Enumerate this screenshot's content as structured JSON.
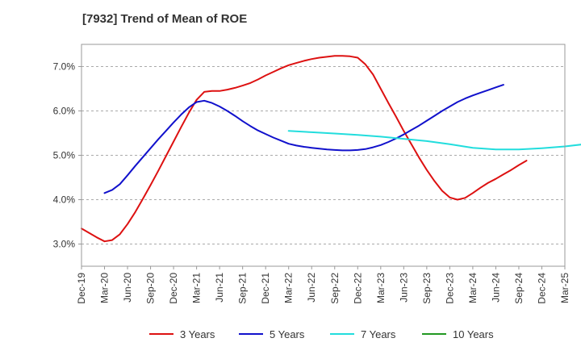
{
  "chart_data": {
    "type": "line",
    "title": "[7932]  Trend of Mean of ROE",
    "xlabel": "",
    "ylabel": "",
    "x_ticks": [
      "Dec-19",
      "Mar-20",
      "Jun-20",
      "Sep-20",
      "Dec-20",
      "Mar-21",
      "Jun-21",
      "Sep-21",
      "Dec-21",
      "Mar-22",
      "Jun-22",
      "Sep-22",
      "Dec-22",
      "Mar-23",
      "Jun-23",
      "Sep-23",
      "Dec-23",
      "Mar-24",
      "Jun-24",
      "Sep-24",
      "Dec-24",
      "Mar-25"
    ],
    "y_ticks": [
      "3.0%",
      "4.0%",
      "5.0%",
      "6.0%",
      "7.0%"
    ],
    "ylim": [
      2.5,
      7.5
    ],
    "grid": "horizontal dashed",
    "legend_position": "bottom",
    "series": [
      {
        "name": "3 Years",
        "color": "#dd1111",
        "points": [
          [
            "Dec-19",
            3.35
          ],
          [
            "Jan-20",
            3.25
          ],
          [
            "Feb-20",
            3.15
          ],
          [
            "Mar-20",
            3.06
          ],
          [
            "Apr-20",
            3.09
          ],
          [
            "May-20",
            3.22
          ],
          [
            "Jun-20",
            3.45
          ],
          [
            "Jul-20",
            3.72
          ],
          [
            "Aug-20",
            4.02
          ],
          [
            "Sep-20",
            4.33
          ],
          [
            "Oct-20",
            4.65
          ],
          [
            "Nov-20",
            4.98
          ],
          [
            "Dec-20",
            5.31
          ],
          [
            "Jan-21",
            5.64
          ],
          [
            "Feb-21",
            5.96
          ],
          [
            "Mar-21",
            6.25
          ],
          [
            "Apr-21",
            6.43
          ],
          [
            "May-21",
            6.45
          ],
          [
            "Jun-21",
            6.45
          ],
          [
            "Jul-21",
            6.48
          ],
          [
            "Aug-21",
            6.52
          ],
          [
            "Sep-21",
            6.57
          ],
          [
            "Oct-21",
            6.63
          ],
          [
            "Nov-21",
            6.71
          ],
          [
            "Dec-21",
            6.8
          ],
          [
            "Jan-22",
            6.88
          ],
          [
            "Feb-22",
            6.96
          ],
          [
            "Mar-22",
            7.03
          ],
          [
            "Apr-22",
            7.08
          ],
          [
            "May-22",
            7.13
          ],
          [
            "Jun-22",
            7.17
          ],
          [
            "Jul-22",
            7.2
          ],
          [
            "Aug-22",
            7.22
          ],
          [
            "Sep-22",
            7.24
          ],
          [
            "Oct-22",
            7.24
          ],
          [
            "Nov-22",
            7.23
          ],
          [
            "Dec-22",
            7.2
          ],
          [
            "Jan-23",
            7.05
          ],
          [
            "Feb-23",
            6.82
          ],
          [
            "Mar-23",
            6.5
          ],
          [
            "Apr-23",
            6.18
          ],
          [
            "May-23",
            5.87
          ],
          [
            "Jun-23",
            5.55
          ],
          [
            "Jul-23",
            5.25
          ],
          [
            "Aug-23",
            4.95
          ],
          [
            "Sep-23",
            4.67
          ],
          [
            "Oct-23",
            4.42
          ],
          [
            "Nov-23",
            4.2
          ],
          [
            "Dec-23",
            4.05
          ],
          [
            "Jan-24",
            4.0
          ],
          [
            "Feb-24",
            4.04
          ],
          [
            "Mar-24",
            4.15
          ],
          [
            "Apr-24",
            4.27
          ],
          [
            "May-24",
            4.38
          ],
          [
            "Jun-24",
            4.47
          ],
          [
            "Jul-24",
            4.57
          ],
          [
            "Aug-24",
            4.67
          ],
          [
            "Sep-24",
            4.78
          ],
          [
            "Oct-24",
            4.88
          ]
        ]
      },
      {
        "name": "5 Years",
        "color": "#1111cc",
        "points": [
          [
            "Mar-20",
            4.15
          ],
          [
            "Apr-20",
            4.22
          ],
          [
            "May-20",
            4.35
          ],
          [
            "Jun-20",
            4.55
          ],
          [
            "Jul-20",
            4.76
          ],
          [
            "Aug-20",
            4.96
          ],
          [
            "Sep-20",
            5.16
          ],
          [
            "Oct-20",
            5.36
          ],
          [
            "Nov-20",
            5.55
          ],
          [
            "Dec-20",
            5.74
          ],
          [
            "Jan-21",
            5.92
          ],
          [
            "Feb-21",
            6.08
          ],
          [
            "Mar-21",
            6.2
          ],
          [
            "Apr-21",
            6.23
          ],
          [
            "May-21",
            6.18
          ],
          [
            "Jun-21",
            6.1
          ],
          [
            "Jul-21",
            6.0
          ],
          [
            "Aug-21",
            5.89
          ],
          [
            "Sep-21",
            5.77
          ],
          [
            "Oct-21",
            5.66
          ],
          [
            "Nov-21",
            5.56
          ],
          [
            "Dec-21",
            5.48
          ],
          [
            "Jan-22",
            5.4
          ],
          [
            "Feb-22",
            5.33
          ],
          [
            "Mar-22",
            5.26
          ],
          [
            "Apr-22",
            5.22
          ],
          [
            "May-22",
            5.19
          ],
          [
            "Jun-22",
            5.17
          ],
          [
            "Jul-22",
            5.15
          ],
          [
            "Aug-22",
            5.13
          ],
          [
            "Sep-22",
            5.12
          ],
          [
            "Oct-22",
            5.11
          ],
          [
            "Nov-22",
            5.11
          ],
          [
            "Dec-22",
            5.12
          ],
          [
            "Jan-23",
            5.14
          ],
          [
            "Feb-23",
            5.18
          ],
          [
            "Mar-23",
            5.23
          ],
          [
            "Apr-23",
            5.3
          ],
          [
            "May-23",
            5.38
          ],
          [
            "Jun-23",
            5.47
          ],
          [
            "Jul-23",
            5.57
          ],
          [
            "Aug-23",
            5.67
          ],
          [
            "Sep-23",
            5.78
          ],
          [
            "Oct-23",
            5.89
          ],
          [
            "Nov-23",
            6.0
          ],
          [
            "Dec-23",
            6.1
          ],
          [
            "Jan-24",
            6.2
          ],
          [
            "Feb-24",
            6.28
          ],
          [
            "Mar-24",
            6.35
          ],
          [
            "Apr-24",
            6.41
          ],
          [
            "May-24",
            6.47
          ],
          [
            "Jun-24",
            6.53
          ],
          [
            "Jul-24",
            6.59
          ]
        ]
      },
      {
        "name": "7 Years",
        "color": "#22dddd",
        "points": [
          [
            "Mar-22",
            5.55
          ],
          [
            "Jun-22",
            5.52
          ],
          [
            "Sep-22",
            5.49
          ],
          [
            "Dec-22",
            5.46
          ],
          [
            "Mar-23",
            5.42
          ],
          [
            "Jun-23",
            5.37
          ],
          [
            "Sep-23",
            5.32
          ],
          [
            "Dec-23",
            5.25
          ],
          [
            "Mar-24",
            5.17
          ],
          [
            "Jun-24",
            5.13
          ],
          [
            "Sep-24",
            5.13
          ],
          [
            "Dec-24",
            5.16
          ],
          [
            "Mar-25",
            5.2
          ],
          [
            "Jun-25",
            5.26
          ]
        ]
      },
      {
        "name": "10 Years",
        "color": "#229922",
        "points": []
      }
    ]
  }
}
